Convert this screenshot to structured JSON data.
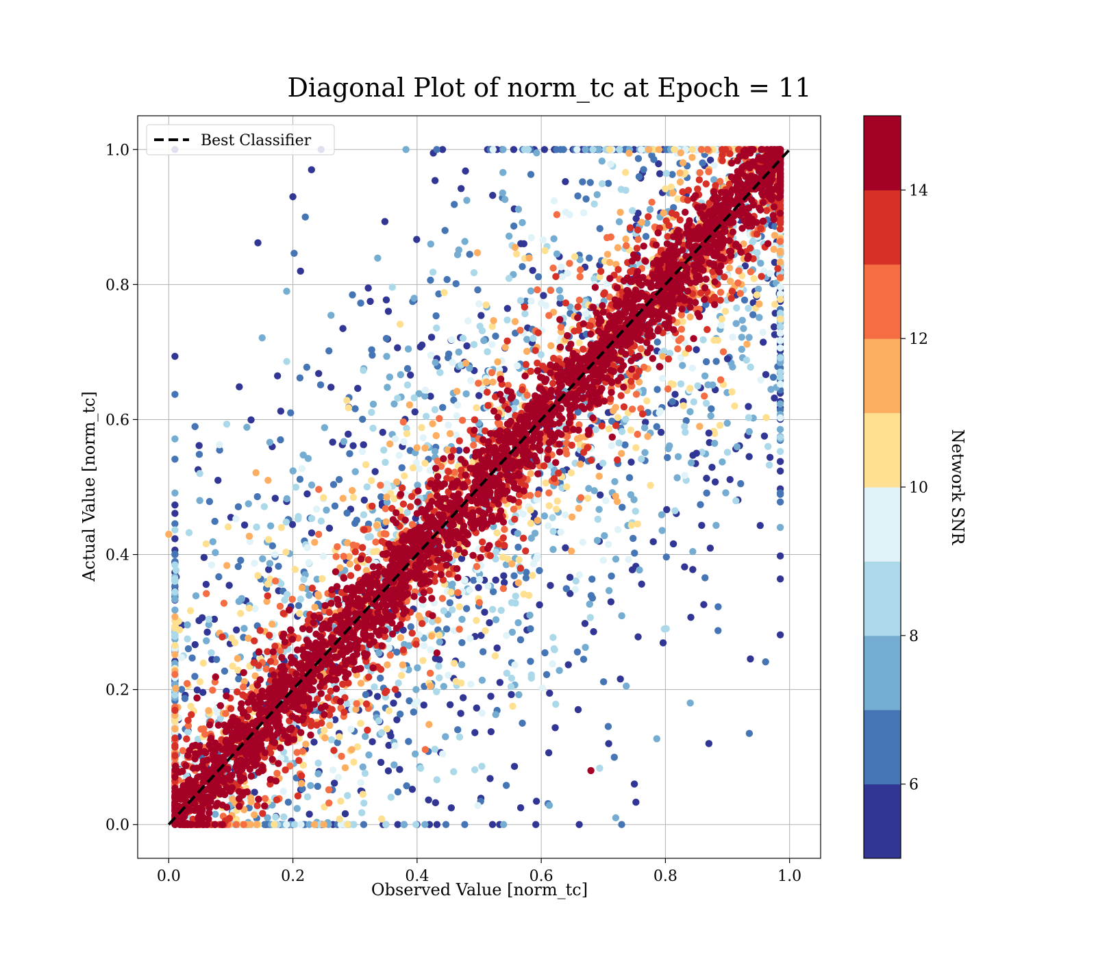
{
  "chart_data": {
    "type": "scatter",
    "title": "Diagonal Plot of norm_tc at Epoch = 11",
    "xlabel": "Observed Value [norm_tc]",
    "ylabel": "Actual Value [norm_tc]",
    "xlim": [
      -0.05,
      1.05
    ],
    "ylim": [
      -0.05,
      1.05
    ],
    "xticks": [
      0.0,
      0.2,
      0.4,
      0.6,
      0.8,
      1.0
    ],
    "yticks": [
      0.0,
      0.2,
      0.4,
      0.6,
      0.8,
      1.0
    ],
    "xtick_labels": [
      "0.0",
      "0.2",
      "0.4",
      "0.6",
      "0.8",
      "1.0"
    ],
    "ytick_labels": [
      "0.0",
      "0.2",
      "0.4",
      "0.6",
      "0.8",
      "1.0"
    ],
    "grid": true,
    "legend": {
      "placement": "top-left",
      "entries": [
        "Best Classifier"
      ]
    },
    "reference_line": {
      "name": "Best Classifier",
      "style": "dashed",
      "color": "#000000",
      "x": [
        0.0,
        1.0
      ],
      "y": [
        0.0,
        1.0
      ]
    },
    "colorbar": {
      "label": "Network SNR",
      "range": [
        5,
        15
      ],
      "ticks": [
        6,
        8,
        10,
        12,
        14
      ],
      "tick_labels": [
        "6",
        "8",
        "10",
        "12",
        "14"
      ],
      "colormap": [
        "#313695",
        "#4575b4",
        "#74add1",
        "#abd9e9",
        "#e0f3f8",
        "#fee090",
        "#fdae61",
        "#f46d43",
        "#d73027",
        "#a50026"
      ]
    },
    "points_summary": "thousands of points; high-SNR points (~13-15) cluster tightly around the diagonal, low-SNR points (~5-9) spread in upper-left and lower-right regions",
    "highlighted_points": [
      {
        "x": 0.0,
        "y": 0.43,
        "snr": 11.5
      },
      {
        "x": 0.05,
        "y": 0.52,
        "snr": 8.5
      },
      {
        "x": 0.05,
        "y": 0.48,
        "snr": 7.5
      },
      {
        "x": 0.16,
        "y": 0.51,
        "snr": 11.5
      },
      {
        "x": 0.18,
        "y": 0.57,
        "snr": 6.5
      },
      {
        "x": 0.19,
        "y": 0.79,
        "snr": 7.5
      },
      {
        "x": 0.2,
        "y": 0.93,
        "snr": 5.5
      },
      {
        "x": 0.23,
        "y": 0.97,
        "snr": 5.5
      },
      {
        "x": 0.22,
        "y": 0.9,
        "snr": 6.5
      },
      {
        "x": 0.84,
        "y": 0.18,
        "snr": 7.5
      },
      {
        "x": 0.87,
        "y": 0.12,
        "snr": 5.5
      },
      {
        "x": 0.87,
        "y": 0.58,
        "snr": 5.5
      },
      {
        "x": 0.85,
        "y": 0.55,
        "snr": 5.5
      },
      {
        "x": 0.9,
        "y": 0.69,
        "snr": 5.5
      },
      {
        "x": 0.68,
        "y": 0.08,
        "snr": 14.5
      },
      {
        "x": 0.75,
        "y": 0.06,
        "snr": 5.5
      },
      {
        "x": 0.72,
        "y": 0.01,
        "snr": 7.5
      }
    ]
  }
}
